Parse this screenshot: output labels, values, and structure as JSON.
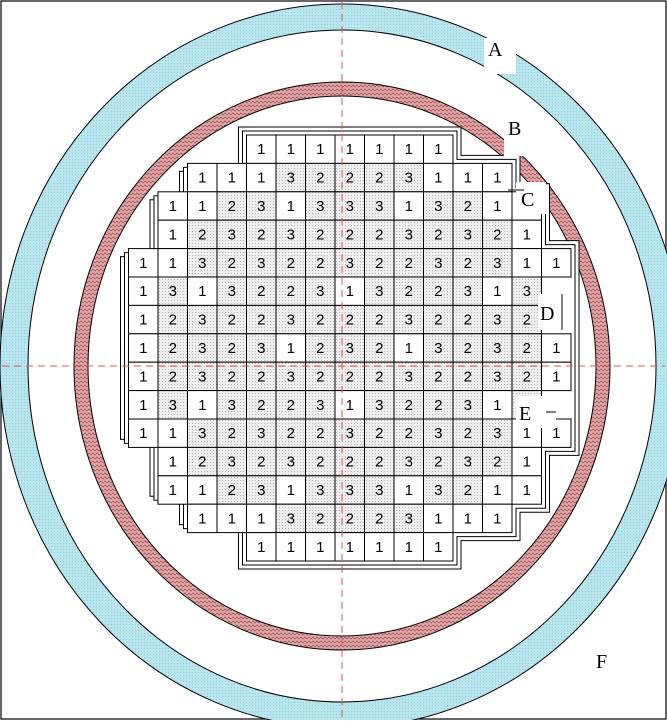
{
  "labels": {
    "A": "A",
    "B": "B",
    "C": "C",
    "D": "D",
    "E": "E",
    "F": "F"
  },
  "core_map": {
    "rows": [
      [
        0,
        0,
        0,
        0,
        1,
        1,
        1,
        1,
        1,
        1,
        1,
        0,
        0,
        0,
        0
      ],
      [
        0,
        0,
        1,
        1,
        1,
        3,
        2,
        2,
        2,
        3,
        1,
        1,
        1,
        0,
        0
      ],
      [
        0,
        1,
        1,
        2,
        3,
        1,
        3,
        3,
        3,
        1,
        3,
        2,
        1,
        1,
        0
      ],
      [
        0,
        1,
        2,
        3,
        2,
        3,
        2,
        2,
        2,
        3,
        2,
        3,
        2,
        1,
        0
      ],
      [
        1,
        1,
        3,
        2,
        3,
        2,
        2,
        3,
        2,
        2,
        3,
        2,
        3,
        1,
        1
      ],
      [
        1,
        3,
        1,
        3,
        2,
        2,
        3,
        1,
        3,
        2,
        2,
        3,
        1,
        3,
        0
      ],
      [
        1,
        2,
        3,
        2,
        2,
        3,
        2,
        2,
        2,
        3,
        2,
        2,
        3,
        2,
        0
      ],
      [
        1,
        2,
        3,
        2,
        3,
        1,
        2,
        3,
        2,
        1,
        3,
        2,
        3,
        2,
        1
      ],
      [
        1,
        2,
        3,
        2,
        2,
        3,
        2,
        2,
        2,
        3,
        2,
        2,
        3,
        2,
        1
      ],
      [
        1,
        3,
        1,
        3,
        2,
        2,
        3,
        1,
        3,
        2,
        2,
        3,
        1,
        3,
        0
      ],
      [
        1,
        1,
        3,
        2,
        3,
        2,
        2,
        3,
        2,
        2,
        3,
        2,
        3,
        1,
        1
      ],
      [
        0,
        1,
        2,
        3,
        2,
        3,
        2,
        2,
        2,
        3,
        2,
        3,
        2,
        1,
        0
      ],
      [
        0,
        1,
        1,
        2,
        3,
        1,
        3,
        3,
        3,
        1,
        3,
        2,
        1,
        1,
        0
      ],
      [
        0,
        0,
        1,
        1,
        1,
        3,
        2,
        2,
        2,
        3,
        1,
        1,
        1,
        0,
        0
      ],
      [
        0,
        0,
        0,
        0,
        1,
        1,
        1,
        1,
        1,
        1,
        1,
        0,
        0,
        0,
        0
      ]
    ]
  },
  "colors": {
    "outer_ring": "#b9e6ee",
    "inner_ring": "#d8a3a3",
    "axis_line": "#e05050",
    "cell_shade": "#dcdcdc",
    "border": "#000000"
  }
}
